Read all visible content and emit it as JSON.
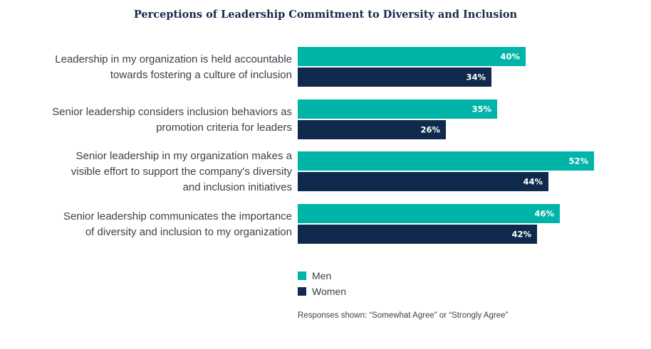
{
  "chart_data": {
    "type": "bar",
    "orientation": "horizontal",
    "title": "Perceptions of Leadership Commitment to Diversity and Inclusion",
    "categories": [
      [
        "Leadership in my organization is held accountable",
        "towards fostering a culture of inclusion"
      ],
      [
        "Senior leadership considers inclusion behaviors as",
        "promotion criteria for leaders"
      ],
      [
        "Senior leadership in my organization makes a",
        "visible effort to support the company's diversity",
        "and inclusion initiatives"
      ],
      [
        "Senior leadership communicates the importance",
        "of diversity and inclusion to my organization"
      ]
    ],
    "series": [
      {
        "name": "Men",
        "color": "#00b5a8",
        "values": [
          40,
          35,
          52,
          46
        ],
        "labels": [
          "40%",
          "35%",
          "52%",
          "46%"
        ]
      },
      {
        "name": "Women",
        "color": "#0f2a4d",
        "values": [
          34,
          26,
          44,
          42
        ],
        "labels": [
          "34%",
          "26%",
          "44%",
          "42%"
        ]
      }
    ],
    "xlim": [
      0,
      60
    ],
    "grid": false,
    "legend_position": "bottom-left",
    "footnote": "Responses shown: “Somewhat Agree” or “Strongly Agree”"
  }
}
